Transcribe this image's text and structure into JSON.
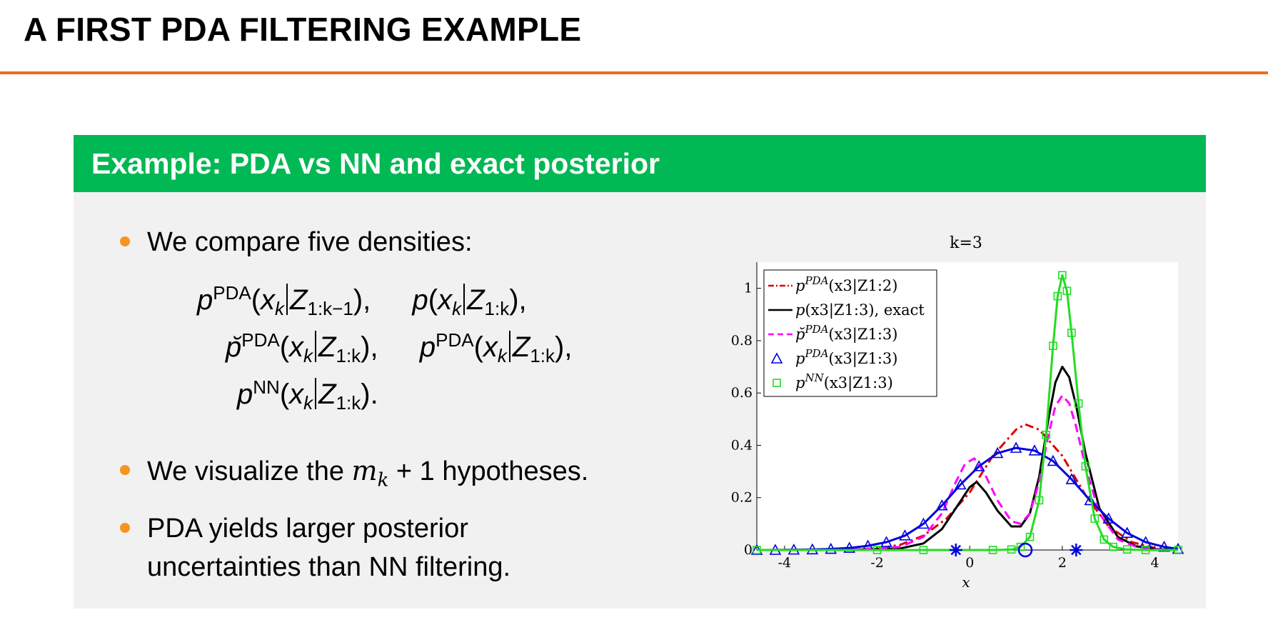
{
  "slide": {
    "title": "A FIRST PDA FILTERING EXAMPLE",
    "block_title": "Example: PDA vs NN and exact posterior",
    "bullets": [
      "We compare five densities:",
      "We visualize the",
      "PDA yields larger posterior",
      "uncertainties than NN filtering."
    ],
    "bullet2_math": "m",
    "bullet2_sub": "k",
    "bullet2_rest": " + 1 hypotheses.",
    "colors": {
      "accent": "#f06a1e",
      "block_header": "#00b854",
      "block_body": "#f1f1f1",
      "bullet": "#f7941d"
    }
  },
  "equations": {
    "p": "p",
    "p_breve": "p̆",
    "sup_pda": "PDA",
    "sup_nn": "NN",
    "x": "x",
    "z": "Z",
    "k": "k",
    "sub_km1": "1:k−1",
    "sub_k": "1:k",
    "open": "(",
    "close_comma": "),",
    "close_dot": ")."
  },
  "chart_data": {
    "type": "line",
    "title": "k=3",
    "xlabel": "x",
    "ylabel": "",
    "xlim": [
      -4.6,
      4.5
    ],
    "ylim": [
      0,
      1.1
    ],
    "xticks": [
      -4,
      -2,
      0,
      2,
      4
    ],
    "yticks": [
      0,
      0.2,
      0.4,
      0.6,
      0.8,
      1
    ],
    "xtick_labels": [
      "-4",
      "-2",
      "0",
      "2",
      "4"
    ],
    "ytick_labels": [
      "0",
      "0.2",
      "0.4",
      "0.6",
      "0.8",
      "1"
    ],
    "legend_position": "top-left",
    "grid": false,
    "series": [
      {
        "name": "p^PDA(x3|Z1:2)",
        "legend_main": "p",
        "legend_sup": "PDA",
        "legend_tail": "(x3|Z1:2)",
        "style": "dash-dot",
        "color": "#e00000",
        "marker": "none",
        "x": [
          -4.6,
          -3.5,
          -2.5,
          -2.0,
          -1.5,
          -1.0,
          -0.5,
          0.0,
          0.5,
          1.0,
          1.2,
          1.5,
          2.0,
          2.5,
          3.0,
          3.5,
          4.0,
          4.5
        ],
        "y": [
          0.0,
          0.0,
          0.002,
          0.006,
          0.02,
          0.055,
          0.12,
          0.22,
          0.36,
          0.46,
          0.48,
          0.46,
          0.36,
          0.21,
          0.09,
          0.03,
          0.008,
          0.002
        ]
      },
      {
        "name": "p(x3|Z1:3), exact",
        "legend_main": "p",
        "legend_sup": "",
        "legend_tail": "(x3|Z1:3), exact",
        "style": "solid",
        "color": "#000000",
        "marker": "none",
        "x": [
          -4.6,
          -2.5,
          -1.5,
          -1.0,
          -0.6,
          -0.3,
          0.0,
          0.15,
          0.35,
          0.6,
          0.9,
          1.1,
          1.3,
          1.5,
          1.7,
          1.85,
          2.0,
          2.15,
          2.3,
          2.5,
          2.8,
          3.2,
          3.6,
          4.0,
          4.5
        ],
        "y": [
          0.0,
          0.001,
          0.006,
          0.025,
          0.08,
          0.16,
          0.24,
          0.26,
          0.22,
          0.15,
          0.09,
          0.09,
          0.14,
          0.28,
          0.5,
          0.64,
          0.7,
          0.66,
          0.55,
          0.37,
          0.16,
          0.05,
          0.014,
          0.004,
          0.0
        ]
      },
      {
        "name": "p̆^PDA(x3|Z1:3)",
        "legend_main": "p̆",
        "legend_sup": "PDA",
        "legend_tail": "(x3|Z1:3)",
        "style": "dashed",
        "color": "#ff00ff",
        "marker": "none",
        "x": [
          -4.6,
          -2.5,
          -1.5,
          -1.0,
          -0.6,
          -0.3,
          -0.1,
          0.1,
          0.3,
          0.6,
          0.9,
          1.1,
          1.3,
          1.5,
          1.7,
          1.85,
          2.0,
          2.15,
          2.3,
          2.5,
          2.8,
          3.2,
          3.6,
          4.0,
          4.5
        ],
        "y": [
          0.0,
          0.002,
          0.012,
          0.05,
          0.14,
          0.26,
          0.33,
          0.35,
          0.3,
          0.19,
          0.11,
          0.1,
          0.14,
          0.26,
          0.44,
          0.55,
          0.59,
          0.56,
          0.47,
          0.32,
          0.14,
          0.04,
          0.012,
          0.003,
          0.0
        ]
      },
      {
        "name": "p^PDA(x3|Z1:3)",
        "legend_main": "p",
        "legend_sup": "PDA",
        "legend_tail": "(x3|Z1:3)",
        "style": "solid",
        "color": "#0000e0",
        "marker": "triangle",
        "x": [
          -4.6,
          -4.2,
          -3.8,
          -3.4,
          -3.0,
          -2.6,
          -2.2,
          -1.8,
          -1.4,
          -1.0,
          -0.6,
          -0.2,
          0.2,
          0.6,
          1.0,
          1.4,
          1.8,
          2.2,
          2.6,
          3.0,
          3.4,
          3.8,
          4.2,
          4.5
        ],
        "y": [
          0.0,
          0.0,
          0.001,
          0.002,
          0.004,
          0.008,
          0.016,
          0.03,
          0.055,
          0.1,
          0.17,
          0.25,
          0.32,
          0.37,
          0.39,
          0.38,
          0.34,
          0.27,
          0.19,
          0.12,
          0.065,
          0.03,
          0.012,
          0.004
        ]
      },
      {
        "name": "p^NN(x3|Z1:3)",
        "legend_main": "p",
        "legend_sup": "NN",
        "legend_tail": "(x3|Z1:3)",
        "style": "solid",
        "color": "#22dd22",
        "marker": "square",
        "x": [
          -4.6,
          -2.0,
          -1.0,
          0.5,
          0.9,
          1.1,
          1.3,
          1.5,
          1.65,
          1.8,
          1.9,
          2.0,
          2.1,
          2.2,
          2.35,
          2.5,
          2.7,
          2.9,
          3.1,
          3.4,
          3.8,
          4.5
        ],
        "y": [
          0.0,
          0.0,
          0.0,
          0.0,
          0.002,
          0.012,
          0.05,
          0.19,
          0.44,
          0.78,
          0.97,
          1.05,
          0.99,
          0.83,
          0.56,
          0.32,
          0.12,
          0.04,
          0.012,
          0.002,
          0.0,
          0.0
        ]
      }
    ],
    "measurement_markers": [
      {
        "x": -0.3,
        "marker": "asterisk",
        "color": "#0000e0"
      },
      {
        "x": 1.2,
        "marker": "circle",
        "color": "#0000e0"
      },
      {
        "x": 2.3,
        "marker": "asterisk",
        "color": "#0000e0"
      }
    ]
  }
}
